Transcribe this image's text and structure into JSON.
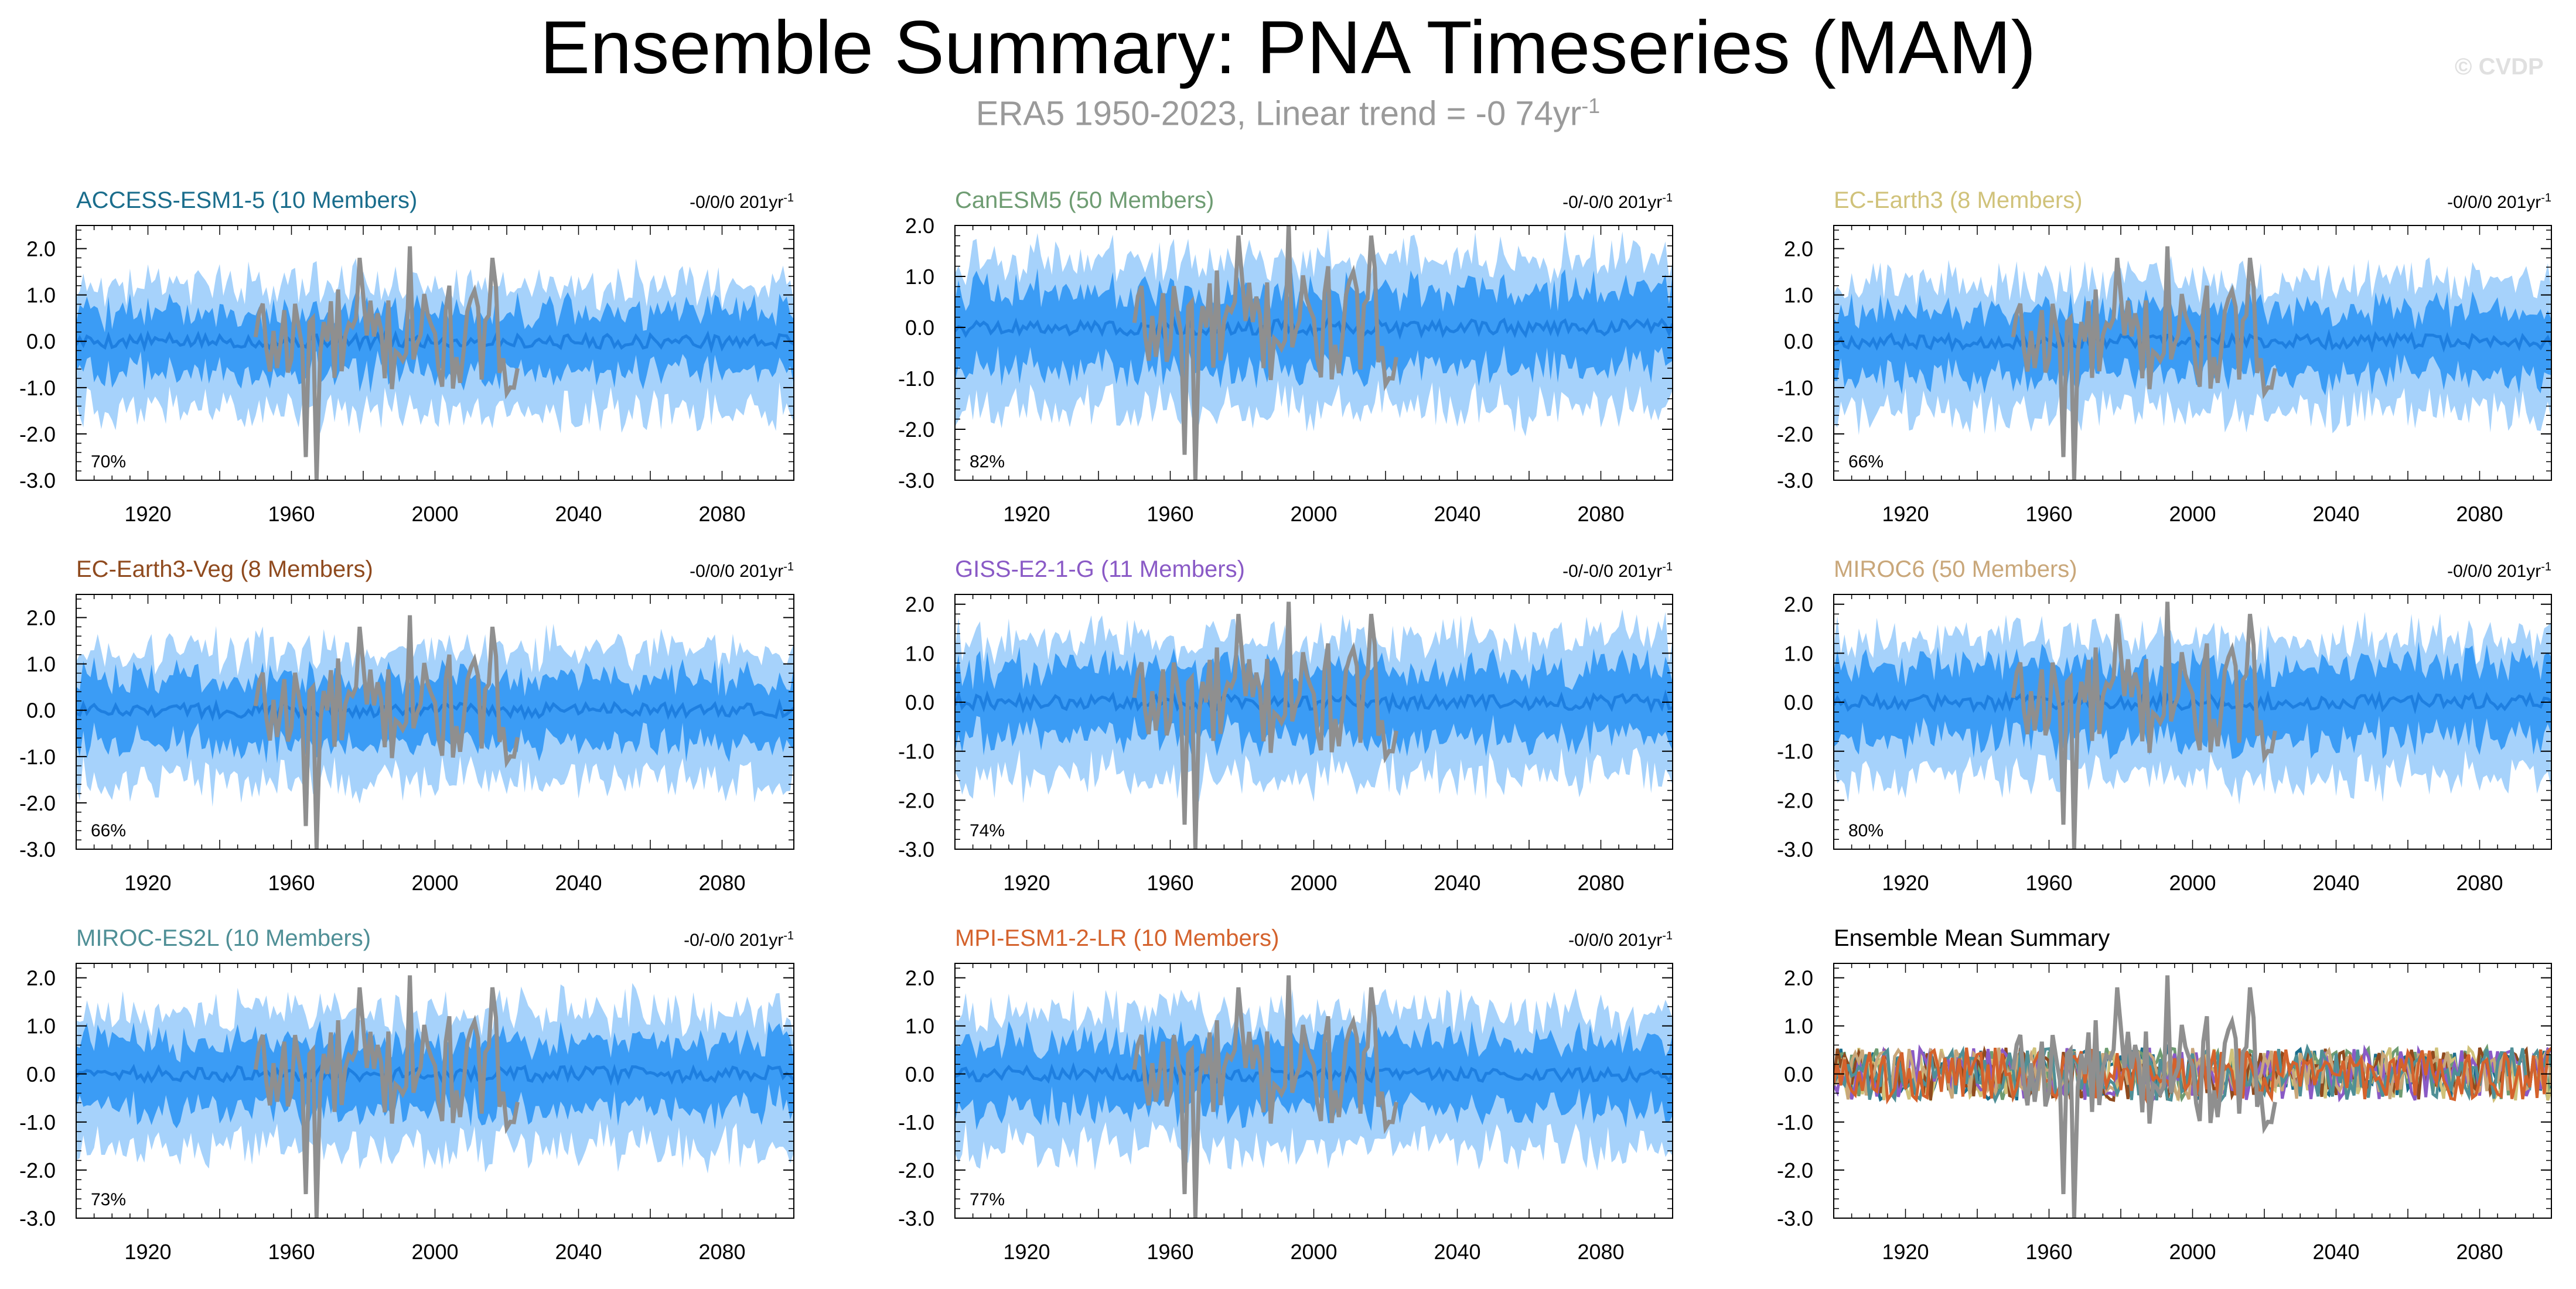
{
  "title": "Ensemble Summary: PNA Timeseries (MAM)",
  "subtitle": {
    "text": "ERA5 1950-2023, Linear trend = -0 74yr",
    "sup": "-1"
  },
  "watermark": "© CVDP",
  "colors": {
    "light_band": "#a6d2fb",
    "dark_band": "#3b9cf5",
    "mean_line": "#1e7fe0",
    "obs": "#8f8f8f"
  },
  "chart_data": [
    {
      "type": "area",
      "panel": "ACCESS-ESM1-5",
      "title": "ACCESS-ESM1-5 (10 Members)",
      "title_color": "#1a6d8c",
      "trend": "-0/0/0 201yr",
      "trend_sup": "-1",
      "percent": "70%",
      "ylim": [
        -3.0,
        2.5
      ],
      "yticks": [
        "2.0",
        "1.0",
        "0.0",
        "-1.0",
        "-2.0",
        "-3.0"
      ],
      "xticks": [
        "1920",
        "1960",
        "2000",
        "2040",
        "2080"
      ],
      "xlim": [
        1900,
        2100
      ],
      "band_light": 1.25,
      "band_dark": 0.65
    },
    {
      "type": "area",
      "panel": "CanESM5",
      "title": "CanESM5 (50 Members)",
      "title_color": "#6e9c72",
      "trend": "-0/-0/0 201yr",
      "trend_sup": "-1",
      "percent": "82%",
      "ylim": [
        -3.0,
        2.0
      ],
      "yticks": [
        "2.0",
        "1.0",
        "0.0",
        "-1.0",
        "-2.0",
        "-3.0"
      ],
      "xticks": [
        "1920",
        "1960",
        "2000",
        "2040",
        "2080"
      ],
      "xlim": [
        1900,
        2100
      ],
      "band_light": 1.35,
      "band_dark": 0.75
    },
    {
      "type": "area",
      "panel": "EC-Earth3",
      "title": "EC-Earth3 (8 Members)",
      "title_color": "#d0c27a",
      "trend": "-0/0/0 201yr",
      "trend_sup": "-1",
      "percent": "66%",
      "ylim": [
        -3.0,
        2.5
      ],
      "yticks": [
        "2.0",
        "1.0",
        "0.0",
        "-1.0",
        "-2.0",
        "-3.0"
      ],
      "xticks": [
        "1920",
        "1960",
        "2000",
        "2040",
        "2080"
      ],
      "xlim": [
        1900,
        2100
      ],
      "band_light": 1.3,
      "band_dark": 0.7
    },
    {
      "type": "area",
      "panel": "EC-Earth3-Veg",
      "title": "EC-Earth3-Veg (8 Members)",
      "title_color": "#8f4a1e",
      "trend": "-0/0/0 201yr",
      "trend_sup": "-1",
      "percent": "66%",
      "ylim": [
        -3.0,
        2.5
      ],
      "yticks": [
        "2.0",
        "1.0",
        "0.0",
        "-1.0",
        "-2.0",
        "-3.0"
      ],
      "xticks": [
        "1920",
        "1960",
        "2000",
        "2040",
        "2080"
      ],
      "xlim": [
        1900,
        2100
      ],
      "band_light": 1.3,
      "band_dark": 0.7
    },
    {
      "type": "area",
      "panel": "GISS-E2-1-G",
      "title": "GISS-E2-1-G (11 Members)",
      "title_color": "#8a5ac6",
      "trend": "-0/-0/0 201yr",
      "trend_sup": "-1",
      "percent": "74%",
      "ylim": [
        -3.0,
        2.2
      ],
      "yticks": [
        "2.0",
        "1.0",
        "0.0",
        "-1.0",
        "-2.0",
        "-3.0"
      ],
      "xticks": [
        "1920",
        "1960",
        "2000",
        "2040",
        "2080"
      ],
      "xlim": [
        1900,
        2100
      ],
      "band_light": 1.3,
      "band_dark": 0.7
    },
    {
      "type": "area",
      "panel": "MIROC6",
      "title": "MIROC6 (50 Members)",
      "title_color": "#c9a77a",
      "trend": "-0/0/0 201yr",
      "trend_sup": "-1",
      "percent": "80%",
      "ylim": [
        -3.0,
        2.2
      ],
      "yticks": [
        "2.0",
        "1.0",
        "0.0",
        "-1.0",
        "-2.0",
        "-3.0"
      ],
      "xticks": [
        "1920",
        "1960",
        "2000",
        "2040",
        "2080"
      ],
      "xlim": [
        1900,
        2100
      ],
      "band_light": 1.3,
      "band_dark": 0.75
    },
    {
      "type": "area",
      "panel": "MIROC-ES2L",
      "title": "MIROC-ES2L (10 Members)",
      "title_color": "#4f8f96",
      "trend": "-0/-0/0 201yr",
      "trend_sup": "-1",
      "percent": "73%",
      "ylim": [
        -3.0,
        2.3
      ],
      "yticks": [
        "2.0",
        "1.0",
        "0.0",
        "-1.0",
        "-2.0",
        "-3.0"
      ],
      "xticks": [
        "1920",
        "1960",
        "2000",
        "2040",
        "2080"
      ],
      "xlim": [
        1900,
        2100
      ],
      "band_light": 1.3,
      "band_dark": 0.7
    },
    {
      "type": "area",
      "panel": "MPI-ESM1-2-LR",
      "title": "MPI-ESM1-2-LR (10 Members)",
      "title_color": "#d4622c",
      "trend": "-0/0/0 201yr",
      "trend_sup": "-1",
      "percent": "77%",
      "ylim": [
        -3.0,
        2.3
      ],
      "yticks": [
        "2.0",
        "1.0",
        "0.0",
        "-1.0",
        "-2.0",
        "-3.0"
      ],
      "xticks": [
        "1920",
        "1960",
        "2000",
        "2040",
        "2080"
      ],
      "xlim": [
        1900,
        2100
      ],
      "band_light": 1.3,
      "band_dark": 0.7
    },
    {
      "type": "line",
      "panel": "Ensemble Mean Summary",
      "title": "Ensemble Mean Summary",
      "title_color": "#000000",
      "trend": "",
      "trend_sup": "",
      "percent": "",
      "ylim": [
        -3.0,
        2.3
      ],
      "yticks": [
        "2.0",
        "1.0",
        "0.0",
        "-1.0",
        "-2.0",
        "-3.0"
      ],
      "xticks": [
        "1920",
        "1960",
        "2000",
        "2040",
        "2080"
      ],
      "xlim": [
        1900,
        2100
      ],
      "series_colors": [
        "#1a6d8c",
        "#6e9c72",
        "#d0c27a",
        "#8f4a1e",
        "#8a5ac6",
        "#c9a77a",
        "#4f8f96",
        "#d4622c"
      ]
    }
  ]
}
